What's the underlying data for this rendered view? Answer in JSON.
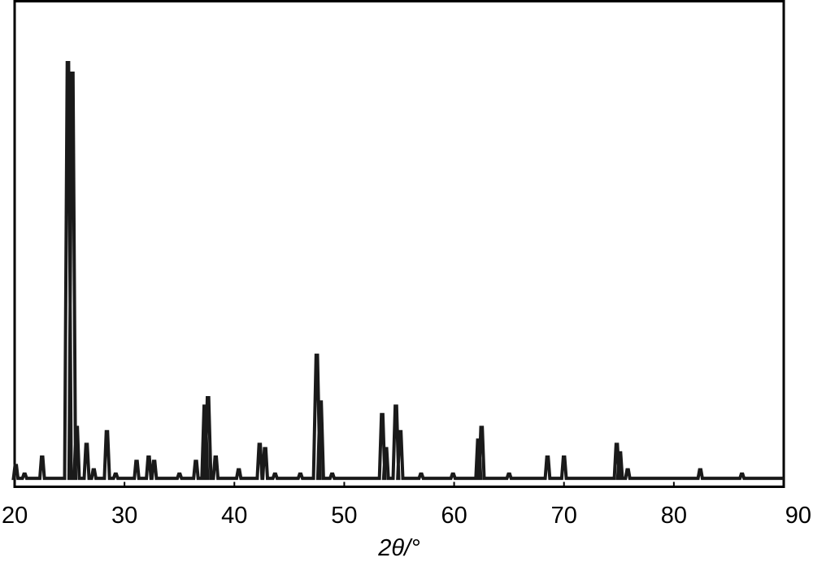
{
  "chart_data": {
    "type": "line",
    "title": "",
    "xlabel": "2θ/°",
    "ylabel": "",
    "xlim": [
      20,
      90
    ],
    "ylim": [
      0,
      1
    ],
    "x_ticks": [
      20,
      30,
      40,
      50,
      60,
      70,
      80,
      90
    ],
    "x_tick_labels": [
      "20",
      "30",
      "40",
      "50",
      "60",
      "70",
      "80",
      "90"
    ],
    "y_ticks": [],
    "grid": false,
    "legend": "none",
    "line_color": "#1a1a1a",
    "baseline": 0.02,
    "peaks": [
      {
        "x": 20.1,
        "y": 0.05
      },
      {
        "x": 20.9,
        "y": 0.03
      },
      {
        "x": 22.5,
        "y": 0.07
      },
      {
        "x": 24.85,
        "y": 1.0
      },
      {
        "x": 25.25,
        "y": 0.975
      },
      {
        "x": 25.65,
        "y": 0.14
      },
      {
        "x": 26.55,
        "y": 0.1
      },
      {
        "x": 27.2,
        "y": 0.04
      },
      {
        "x": 28.4,
        "y": 0.13
      },
      {
        "x": 29.2,
        "y": 0.03
      },
      {
        "x": 31.1,
        "y": 0.06
      },
      {
        "x": 32.2,
        "y": 0.07
      },
      {
        "x": 32.7,
        "y": 0.06
      },
      {
        "x": 35.0,
        "y": 0.03
      },
      {
        "x": 36.5,
        "y": 0.06
      },
      {
        "x": 37.3,
        "y": 0.19
      },
      {
        "x": 37.6,
        "y": 0.21
      },
      {
        "x": 38.3,
        "y": 0.07
      },
      {
        "x": 40.4,
        "y": 0.04
      },
      {
        "x": 42.3,
        "y": 0.1
      },
      {
        "x": 42.8,
        "y": 0.09
      },
      {
        "x": 43.7,
        "y": 0.03
      },
      {
        "x": 46.0,
        "y": 0.03
      },
      {
        "x": 47.5,
        "y": 0.31
      },
      {
        "x": 47.85,
        "y": 0.2
      },
      {
        "x": 48.9,
        "y": 0.03
      },
      {
        "x": 53.45,
        "y": 0.17
      },
      {
        "x": 53.8,
        "y": 0.09
      },
      {
        "x": 54.7,
        "y": 0.19
      },
      {
        "x": 55.1,
        "y": 0.13
      },
      {
        "x": 57.0,
        "y": 0.03
      },
      {
        "x": 59.9,
        "y": 0.03
      },
      {
        "x": 62.2,
        "y": 0.11
      },
      {
        "x": 62.5,
        "y": 0.14
      },
      {
        "x": 65.0,
        "y": 0.03
      },
      {
        "x": 68.5,
        "y": 0.07
      },
      {
        "x": 70.0,
        "y": 0.07
      },
      {
        "x": 74.8,
        "y": 0.1
      },
      {
        "x": 75.1,
        "y": 0.08
      },
      {
        "x": 75.8,
        "y": 0.04
      },
      {
        "x": 82.4,
        "y": 0.04
      },
      {
        "x": 86.2,
        "y": 0.03
      }
    ]
  }
}
